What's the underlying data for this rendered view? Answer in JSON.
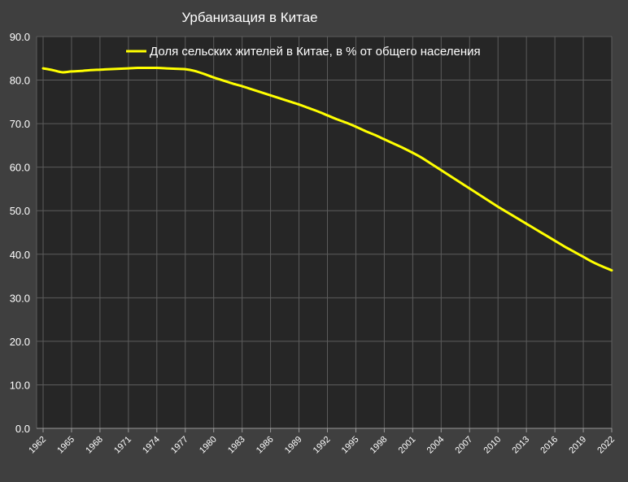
{
  "chart_data": {
    "type": "line",
    "title": "Урбанизация в Китае",
    "xlabel": "",
    "ylabel": "",
    "ylim": [
      0,
      90
    ],
    "yticks": [
      "0.0",
      "10.0",
      "20.0",
      "30.0",
      "40.0",
      "50.0",
      "60.0",
      "70.0",
      "80.0",
      "90.0"
    ],
    "xticks": [
      "1962",
      "1965",
      "1968",
      "1971",
      "1974",
      "1977",
      "1980",
      "1983",
      "1986",
      "1989",
      "1992",
      "1995",
      "1998",
      "2001",
      "2004",
      "2007",
      "2010",
      "2013",
      "2016",
      "2019",
      "2022"
    ],
    "x": [
      1962,
      1963,
      1964,
      1965,
      1966,
      1967,
      1968,
      1969,
      1970,
      1971,
      1972,
      1973,
      1974,
      1975,
      1976,
      1977,
      1978,
      1979,
      1980,
      1981,
      1982,
      1983,
      1984,
      1985,
      1986,
      1987,
      1988,
      1989,
      1990,
      1991,
      1992,
      1993,
      1994,
      1995,
      1996,
      1997,
      1998,
      1999,
      2000,
      2001,
      2002,
      2003,
      2004,
      2005,
      2006,
      2007,
      2008,
      2009,
      2010,
      2011,
      2012,
      2013,
      2014,
      2015,
      2016,
      2017,
      2018,
      2019,
      2020,
      2021,
      2022
    ],
    "grid": true,
    "legend_position": "top",
    "colors": {
      "background": "#3f3f3f",
      "plot_background": "#262626",
      "grid": "#5c5c5c",
      "line": "#ffff00",
      "text": "#ffffff"
    },
    "series": [
      {
        "name": "Доля сельских жителей в Китае, в % от общего населения",
        "values": [
          82.7,
          82.3,
          81.8,
          82.0,
          82.1,
          82.3,
          82.4,
          82.5,
          82.6,
          82.7,
          82.8,
          82.8,
          82.8,
          82.7,
          82.6,
          82.5,
          82.1,
          81.4,
          80.6,
          79.9,
          79.2,
          78.6,
          77.9,
          77.2,
          76.5,
          75.8,
          75.1,
          74.4,
          73.6,
          72.8,
          71.9,
          71.0,
          70.2,
          69.3,
          68.3,
          67.4,
          66.4,
          65.4,
          64.4,
          63.3,
          62.1,
          60.7,
          59.3,
          57.9,
          56.5,
          55.1,
          53.7,
          52.3,
          50.9,
          49.6,
          48.3,
          47.0,
          45.7,
          44.4,
          43.1,
          41.8,
          40.6,
          39.4,
          38.2,
          37.2,
          36.3
        ]
      }
    ]
  }
}
